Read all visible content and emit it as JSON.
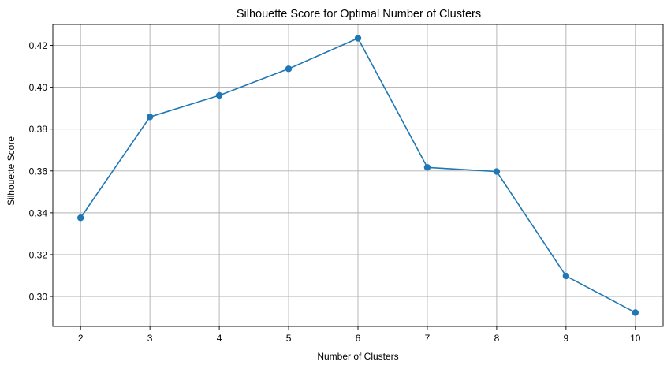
{
  "chart_data": {
    "type": "line",
    "title": "Silhouette Score for Optimal Number of Clusters",
    "xlabel": "Number of Clusters",
    "ylabel": "Silhouette Score",
    "x": [
      2,
      3,
      4,
      5,
      6,
      7,
      8,
      9,
      10
    ],
    "series": [
      {
        "values": [
          0.3376,
          0.3858,
          0.3961,
          0.4088,
          0.4234,
          0.3617,
          0.3597,
          0.3098,
          0.2923
        ],
        "color": "#1f77b4",
        "marker": "circle"
      }
    ],
    "xticks": [
      "2",
      "3",
      "4",
      "5",
      "6",
      "7",
      "8",
      "9",
      "10"
    ],
    "yticks": [
      "0.30",
      "0.32",
      "0.34",
      "0.36",
      "0.38",
      "0.40",
      "0.42"
    ],
    "xlim": [
      1.6,
      10.4
    ],
    "ylim": [
      0.2857,
      0.43
    ],
    "grid": true
  }
}
